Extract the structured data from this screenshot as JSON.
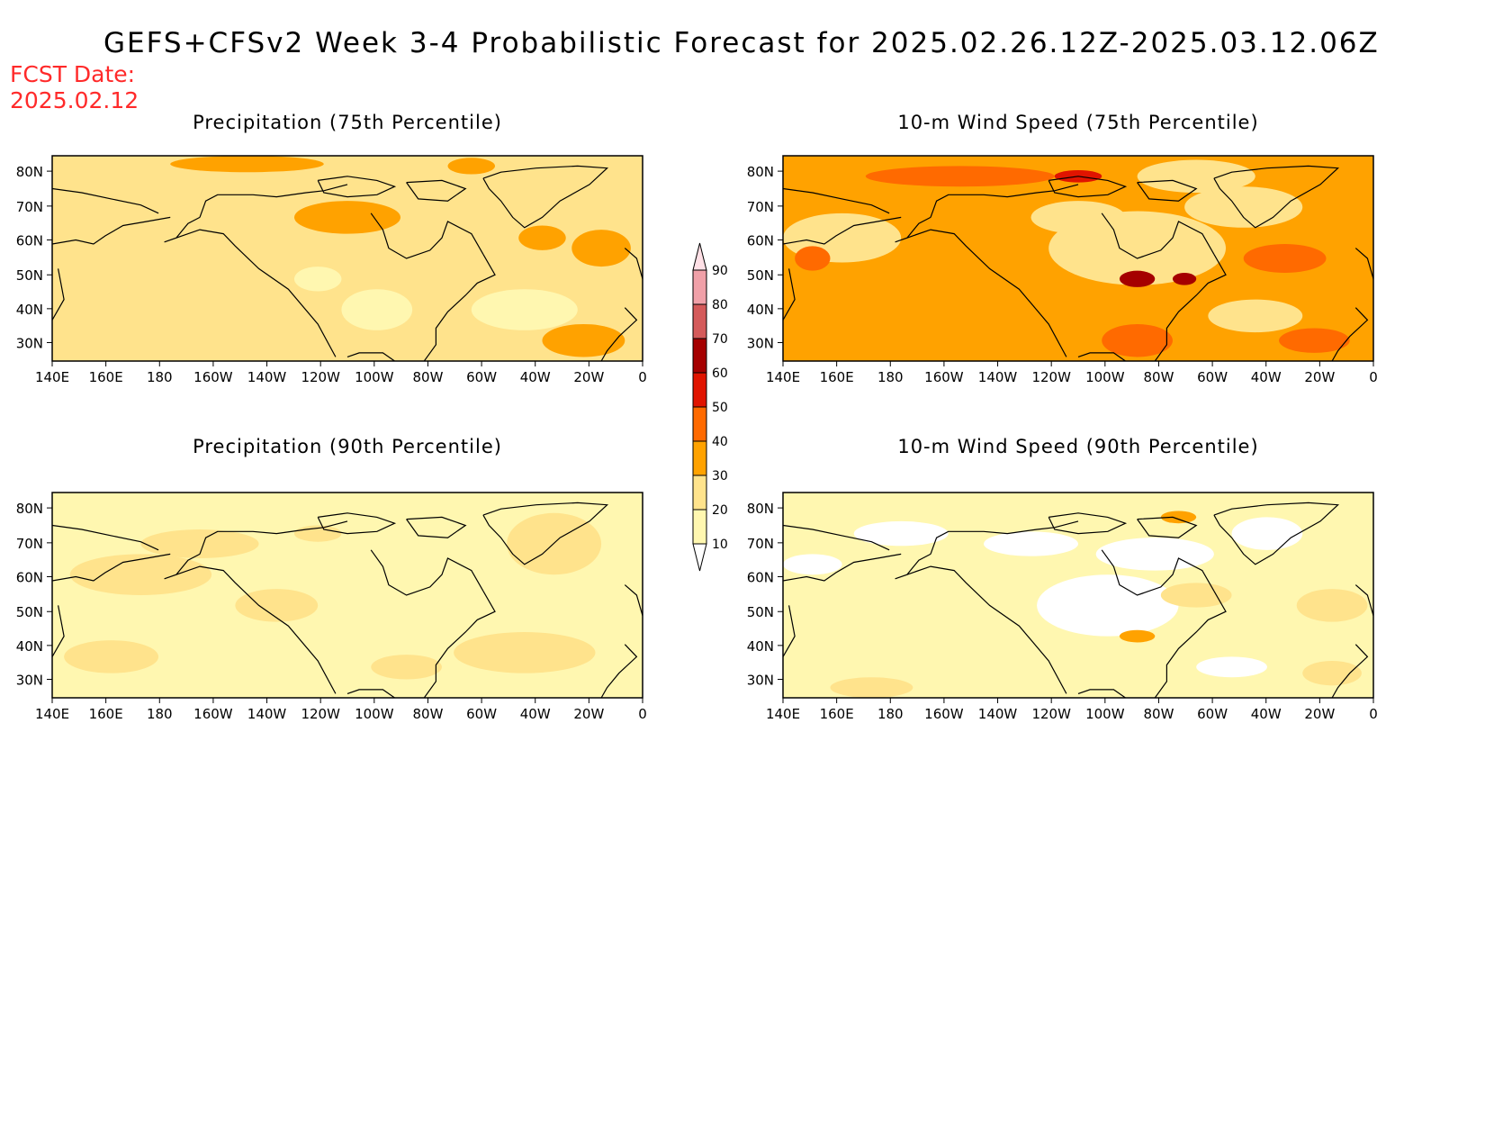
{
  "title": "GEFS+CFSv2 Week 3-4 Probabilistic Forecast for 2025.02.26.12Z-2025.03.12.06Z",
  "fcst_label": "FCST Date:",
  "fcst_date": "2025.02.12",
  "panels": [
    {
      "title": "Precipitation (75th Percentile)",
      "base_level": 20
    },
    {
      "title": "10-m Wind Speed (75th Percentile)",
      "base_level": 30
    },
    {
      "title": "Precipitation (90th Percentile)",
      "base_level": 10
    },
    {
      "title": "10-m Wind Speed (90th Percentile)",
      "base_level": 10
    }
  ],
  "lat_ticks": [
    "80N",
    "70N",
    "60N",
    "50N",
    "40N",
    "30N"
  ],
  "lon_ticks": [
    "140E",
    "160E",
    "180",
    "160W",
    "140W",
    "120W",
    "100W",
    "80W",
    "60W",
    "40W",
    "20W",
    "0"
  ],
  "colorbar": {
    "levels": [
      "10",
      "20",
      "30",
      "40",
      "50",
      "60",
      "70",
      "80",
      "90"
    ],
    "colors": [
      "#ffffff",
      "#fff7b0",
      "#ffe38c",
      "#ffa200",
      "#ff6a00",
      "#e01400",
      "#a50000",
      "#d45a5a",
      "#f0a0a8",
      "#ffe0e6"
    ]
  }
}
